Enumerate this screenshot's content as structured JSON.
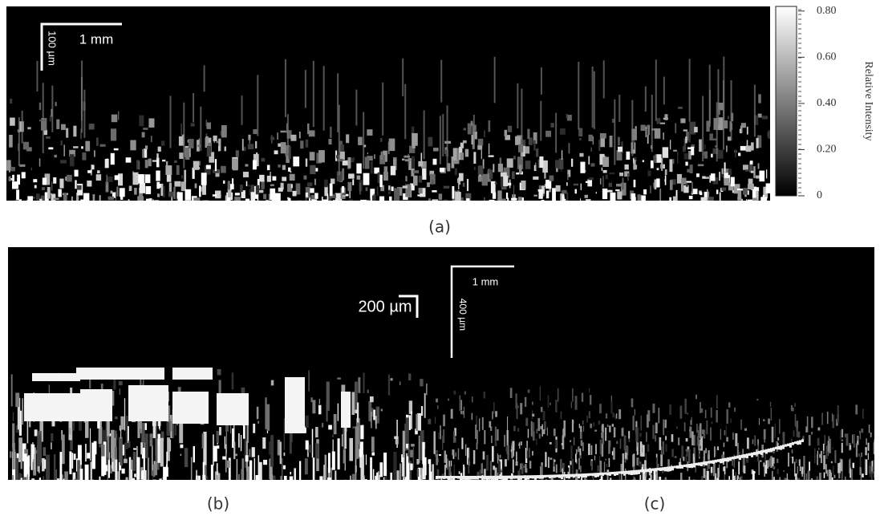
{
  "panels": [
    {
      "label": "(a)",
      "scale_bars": [
        "1 mm",
        "100 µm"
      ]
    },
    {
      "label": "(b)",
      "scale_bars": [
        "200 µm"
      ]
    },
    {
      "label": "(c)",
      "scale_bars": [
        "1 mm",
        "400 µm"
      ]
    }
  ],
  "colorbar": {
    "label": "Relative Intensity",
    "range": [
      0,
      0.82
    ],
    "ticks": [
      0,
      {
        "value": 0.2,
        "label": "0.20"
      },
      {
        "value": 0.4,
        "label": "0.40"
      },
      {
        "value": 0.6,
        "label": "0.60"
      },
      {
        "value": 0.8,
        "label": "0.80"
      }
    ]
  }
}
